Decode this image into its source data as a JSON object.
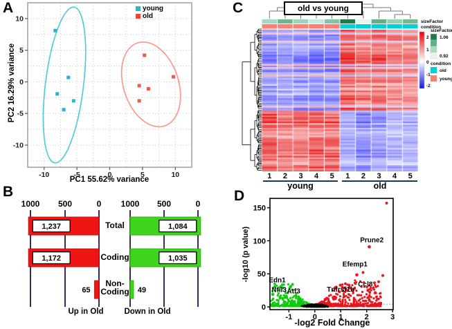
{
  "panel_labels": {
    "a": "A",
    "b": "B",
    "c": "C",
    "d": "D"
  },
  "chart_data": [
    {
      "id": "pca",
      "panel": "A",
      "type": "scatter",
      "xlabel": "PC1 55.62% variance",
      "ylabel": "PC2 16.29% variance",
      "xlim": [
        -12.5,
        12.5
      ],
      "ylim": [
        -13.5,
        12.5
      ],
      "xticks": [
        -10,
        -5,
        0,
        5,
        10
      ],
      "yticks": [
        -10,
        -5,
        0,
        5,
        10
      ],
      "grid_step": 2.5,
      "grid": "dotted",
      "legend": [
        {
          "label": "young",
          "color": "#2db4c6"
        },
        {
          "label": "old",
          "color": "#e8473a"
        }
      ],
      "series": [
        {
          "name": "young",
          "color": "#2db4c6",
          "marker": "square",
          "points": [
            [
              -8.3,
              8.1
            ],
            [
              -6.3,
              0.7
            ],
            [
              -8.0,
              -1.9
            ],
            [
              -5.5,
              -3.0
            ],
            [
              -7.0,
              -4.4
            ]
          ],
          "ellipse": {
            "cx": -6.9,
            "cy": -0.5,
            "rx": 2.9,
            "ry": 12.4,
            "angle": 7,
            "color": "#54ccd6"
          }
        },
        {
          "name": "old",
          "color": "#ee5a4e",
          "marker": "square",
          "points": [
            [
              5.3,
              4.2
            ],
            [
              9.7,
              0.8
            ],
            [
              4.5,
              -0.6
            ],
            [
              5.9,
              -1.1
            ],
            [
              4.5,
              -3.0
            ]
          ],
          "ellipse": {
            "cx": 6.3,
            "cy": -0.4,
            "rx": 4.2,
            "ry": 6.9,
            "angle": -18,
            "color": "#f59a90"
          }
        }
      ]
    },
    {
      "id": "deg-counts",
      "panel": "B",
      "type": "bar",
      "axis_ticks": [
        "1000",
        "500",
        "0"
      ],
      "categories": [
        "Total",
        "Coding",
        "Non-Coding"
      ],
      "gridline_color": "#3f2a56",
      "charts": [
        {
          "title": "Up in Old",
          "color": "#ee1515",
          "border": "#c51010",
          "anchor": "right",
          "values": [
            1237,
            1172,
            65
          ],
          "value_labels": [
            "1,237",
            "1,172",
            "65"
          ]
        },
        {
          "title": "Down in Old",
          "color": "#3fd41e",
          "border": "#2db10e",
          "anchor": "left",
          "values": [
            1084,
            1035,
            49
          ],
          "value_labels": [
            "1,084",
            "1,035",
            "49"
          ]
        }
      ]
    },
    {
      "id": "heatmap",
      "panel": "C",
      "type": "heatmap",
      "title": "old vs young",
      "column_groups": [
        {
          "name": "young",
          "columns": [
            "1",
            "2",
            "3",
            "4",
            "5"
          ]
        },
        {
          "name": "old",
          "columns": [
            "1",
            "2",
            "3",
            "4",
            "5"
          ]
        }
      ],
      "annotation_rows": [
        {
          "label": "sizeFactor",
          "colors": [
            "#a6d9c3",
            "#6ab98c",
            "#9fd4bb",
            "#c9e9da",
            "#84c5a4",
            "#1f7a48",
            "#e8f5ee",
            "#5fb083",
            "#98d1b4",
            "#70bb90"
          ]
        },
        {
          "label": "condition",
          "values": [
            "young",
            "young",
            "young",
            "young",
            "young",
            "old",
            "old",
            "old",
            "old",
            "old"
          ]
        }
      ],
      "condition_colors": {
        "old": "#00d2d4",
        "young": "#fb8072"
      },
      "colorbar": {
        "ticks": [
          "2",
          "1",
          "0",
          "-1",
          "-2"
        ],
        "top_color": "#ee0000",
        "mid_color": "#ffffff",
        "bottom_color": "#1515e8"
      },
      "legends": [
        {
          "title": "sizeFactor",
          "swatches": [
            "#1f7a48",
            "#5fae83",
            "#a7d8c2",
            "#e8f5ee"
          ],
          "labels": [
            "1.06",
            "",
            "",
            "0.92"
          ]
        },
        {
          "title": "condition",
          "items": [
            {
              "label": "old",
              "color": "#00d2d4"
            },
            {
              "label": "young",
              "color": "#fb8072"
            }
          ]
        }
      ],
      "expression_pattern": [
        {
          "rows_fraction": 0.57,
          "young": "down (blue)",
          "old": "up (red)"
        },
        {
          "rows_fraction": 0.43,
          "young": "up (red)",
          "old": "down (blue)"
        }
      ],
      "rendered_rows": 92
    },
    {
      "id": "volcano",
      "panel": "D",
      "type": "scatter",
      "xlabel": "-log2 Fold Change",
      "ylabel": "-log10 (p value)",
      "xlim": [
        -1.73,
        3.0
      ],
      "ylim": [
        0,
        164
      ],
      "xticks": [
        -1,
        0,
        1,
        2,
        3
      ],
      "yticks": [
        0,
        50,
        100,
        150
      ],
      "threshold_y": 4,
      "colors": {
        "up": "#e7151c",
        "down": "#0ccb0c",
        "nonsig": "#000000"
      },
      "labeled_genes": [
        {
          "name": "Prune2",
          "point": [
            2.1,
            91
          ],
          "label": [
            2.2,
            98
          ],
          "dir": "up"
        },
        {
          "name": "Efemp1",
          "point": [
            1.62,
            48.5
          ],
          "label": [
            1.55,
            61
          ],
          "dir": "up"
        },
        {
          "name": "Ccl8",
          "point": [
            2.05,
            25
          ],
          "label": [
            1.95,
            31
          ],
          "dir": "up"
        },
        {
          "name": "Edn1",
          "point": [
            -1.55,
            30
          ],
          "label": [
            -1.45,
            37
          ],
          "dir": "down"
        },
        {
          "name": "Nfil3",
          "point": [
            -1.62,
            19
          ],
          "label": [
            -1.38,
            22.5
          ],
          "dir": "down"
        },
        {
          "name": "Atf3",
          "point": [
            -1.1,
            16
          ],
          "label": [
            -0.82,
            20.5
          ],
          "dir": "down"
        },
        {
          "name": "Tnfrsf1b",
          "point": [
            0.8,
            14
          ],
          "label": [
            1.0,
            23
          ],
          "dir": "up"
        }
      ],
      "outlier_points": [
        [
          2.77,
          157,
          "up"
        ],
        [
          2.62,
          47.5,
          "up"
        ],
        [
          2.46,
          38,
          "up"
        ],
        [
          2.3,
          36.5,
          "up"
        ],
        [
          1.86,
          52,
          "up"
        ],
        [
          2.12,
          22,
          "up"
        ],
        [
          2.32,
          21,
          "up"
        ],
        [
          1.32,
          33,
          "up"
        ],
        [
          1.18,
          35,
          "up"
        ],
        [
          0.98,
          33,
          "up"
        ],
        [
          1.06,
          30,
          "up"
        ],
        [
          -0.86,
          34,
          "down"
        ],
        [
          -0.93,
          31,
          "down"
        ]
      ],
      "cloud": {
        "down_n": 340,
        "up_n": 440,
        "nonsig_n": 300
      }
    }
  ]
}
